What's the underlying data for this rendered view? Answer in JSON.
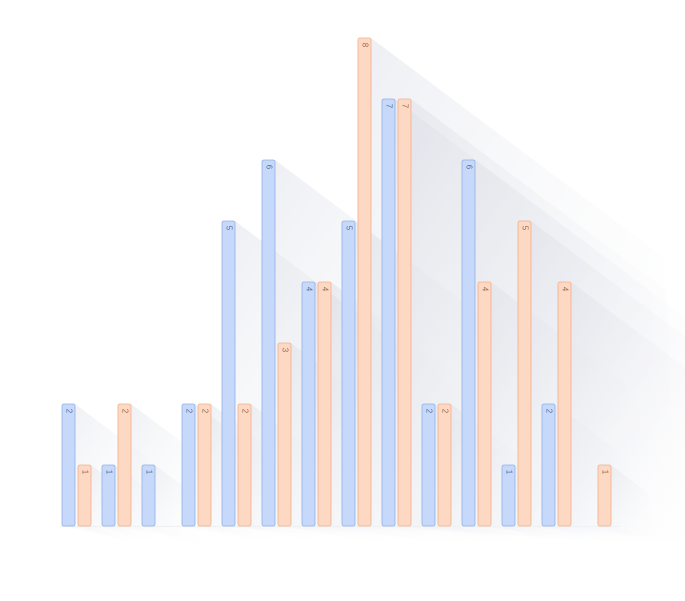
{
  "chart_data": {
    "type": "bar",
    "categories": [
      null,
      null,
      null,
      null,
      null,
      null,
      null,
      null,
      null,
      null,
      null,
      null,
      null,
      null
    ],
    "series": [
      {
        "color": "#c6d9fa",
        "values": [
          2,
          1,
          1,
          2,
          5,
          6,
          4,
          5,
          7,
          2,
          6,
          1,
          2,
          null
        ]
      },
      {
        "color": "#fdd8c2",
        "values": [
          1,
          2,
          null,
          2,
          2,
          3,
          4,
          8,
          7,
          2,
          4,
          5,
          4,
          1
        ]
      }
    ],
    "ylim": [
      0,
      8
    ]
  }
}
